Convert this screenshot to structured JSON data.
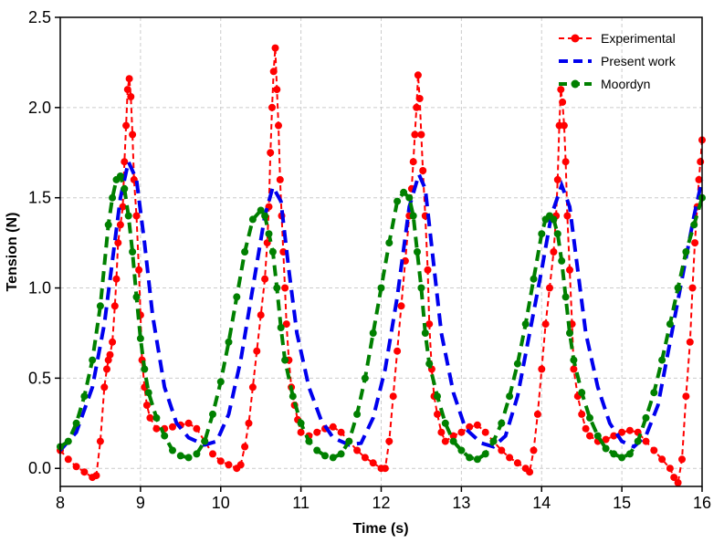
{
  "chart_data": {
    "type": "line",
    "title": "",
    "xlabel": "Time (s)",
    "ylabel": "Tension (N)",
    "xlim": [
      8,
      16
    ],
    "ylim": [
      -0.1,
      2.5
    ],
    "xticks": [
      8,
      9,
      10,
      11,
      12,
      13,
      14,
      15,
      16
    ],
    "yticks": [
      0.0,
      0.5,
      1.0,
      1.5,
      2.0,
      2.5
    ],
    "ytick_labels": [
      "0.0",
      "0.5",
      "1.0",
      "1.5",
      "2.0",
      "2.5"
    ],
    "grid": true,
    "legend_position": "top-right",
    "series": [
      {
        "name": "Experimental",
        "color": "#ff0000",
        "style": "dashed-markers",
        "points": [
          [
            8.0,
            0.1
          ],
          [
            8.1,
            0.05
          ],
          [
            8.2,
            0.01
          ],
          [
            8.3,
            -0.02
          ],
          [
            8.4,
            -0.05
          ],
          [
            8.45,
            -0.04
          ],
          [
            8.5,
            0.15
          ],
          [
            8.55,
            0.45
          ],
          [
            8.58,
            0.55
          ],
          [
            8.6,
            0.6
          ],
          [
            8.62,
            0.63
          ],
          [
            8.65,
            0.7
          ],
          [
            8.68,
            0.9
          ],
          [
            8.7,
            1.05
          ],
          [
            8.72,
            1.25
          ],
          [
            8.75,
            1.35
          ],
          [
            8.78,
            1.45
          ],
          [
            8.8,
            1.7
          ],
          [
            8.82,
            1.9
          ],
          [
            8.84,
            2.1
          ],
          [
            8.86,
            2.16
          ],
          [
            8.88,
            2.06
          ],
          [
            8.9,
            1.85
          ],
          [
            8.92,
            1.6
          ],
          [
            8.95,
            1.4
          ],
          [
            8.98,
            1.1
          ],
          [
            9.0,
            0.85
          ],
          [
            9.02,
            0.6
          ],
          [
            9.05,
            0.45
          ],
          [
            9.08,
            0.35
          ],
          [
            9.12,
            0.28
          ],
          [
            9.2,
            0.22
          ],
          [
            9.3,
            0.22
          ],
          [
            9.4,
            0.23
          ],
          [
            9.5,
            0.24
          ],
          [
            9.6,
            0.25
          ],
          [
            9.7,
            0.22
          ],
          [
            9.8,
            0.15
          ],
          [
            9.9,
            0.08
          ],
          [
            10.0,
            0.04
          ],
          [
            10.1,
            0.02
          ],
          [
            10.2,
            0.0
          ],
          [
            10.25,
            0.02
          ],
          [
            10.3,
            0.12
          ],
          [
            10.35,
            0.25
          ],
          [
            10.4,
            0.45
          ],
          [
            10.45,
            0.65
          ],
          [
            10.5,
            0.85
          ],
          [
            10.55,
            1.05
          ],
          [
            10.58,
            1.25
          ],
          [
            10.6,
            1.45
          ],
          [
            10.62,
            1.75
          ],
          [
            10.64,
            2.0
          ],
          [
            10.66,
            2.2
          ],
          [
            10.68,
            2.33
          ],
          [
            10.7,
            2.1
          ],
          [
            10.72,
            1.9
          ],
          [
            10.74,
            1.6
          ],
          [
            10.76,
            1.4
          ],
          [
            10.78,
            1.2
          ],
          [
            10.8,
            1.0
          ],
          [
            10.82,
            0.8
          ],
          [
            10.85,
            0.6
          ],
          [
            10.88,
            0.45
          ],
          [
            10.92,
            0.35
          ],
          [
            10.96,
            0.27
          ],
          [
            11.0,
            0.2
          ],
          [
            11.1,
            0.18
          ],
          [
            11.2,
            0.2
          ],
          [
            11.3,
            0.22
          ],
          [
            11.4,
            0.23
          ],
          [
            11.5,
            0.2
          ],
          [
            11.6,
            0.15
          ],
          [
            11.7,
            0.1
          ],
          [
            11.8,
            0.06
          ],
          [
            11.9,
            0.03
          ],
          [
            12.0,
            0.0
          ],
          [
            12.05,
            0.0
          ],
          [
            12.1,
            0.15
          ],
          [
            12.15,
            0.4
          ],
          [
            12.2,
            0.65
          ],
          [
            12.25,
            0.9
          ],
          [
            12.3,
            1.15
          ],
          [
            12.35,
            1.4
          ],
          [
            12.38,
            1.55
          ],
          [
            12.4,
            1.7
          ],
          [
            12.42,
            1.85
          ],
          [
            12.44,
            2.0
          ],
          [
            12.46,
            2.18
          ],
          [
            12.48,
            2.05
          ],
          [
            12.5,
            1.85
          ],
          [
            12.52,
            1.65
          ],
          [
            12.55,
            1.4
          ],
          [
            12.58,
            1.1
          ],
          [
            12.6,
            0.8
          ],
          [
            12.63,
            0.55
          ],
          [
            12.66,
            0.4
          ],
          [
            12.7,
            0.3
          ],
          [
            12.75,
            0.2
          ],
          [
            12.8,
            0.15
          ],
          [
            12.9,
            0.18
          ],
          [
            13.0,
            0.2
          ],
          [
            13.1,
            0.23
          ],
          [
            13.2,
            0.24
          ],
          [
            13.3,
            0.2
          ],
          [
            13.4,
            0.15
          ],
          [
            13.5,
            0.1
          ],
          [
            13.6,
            0.06
          ],
          [
            13.7,
            0.03
          ],
          [
            13.8,
            0.0
          ],
          [
            13.85,
            -0.02
          ],
          [
            13.9,
            0.1
          ],
          [
            13.95,
            0.3
          ],
          [
            14.0,
            0.55
          ],
          [
            14.05,
            0.8
          ],
          [
            14.1,
            1.0
          ],
          [
            14.15,
            1.2
          ],
          [
            14.18,
            1.4
          ],
          [
            14.2,
            1.6
          ],
          [
            14.22,
            1.9
          ],
          [
            14.24,
            2.1
          ],
          [
            14.26,
            2.03
          ],
          [
            14.28,
            1.9
          ],
          [
            14.3,
            1.7
          ],
          [
            14.32,
            1.4
          ],
          [
            14.35,
            1.1
          ],
          [
            14.38,
            0.8
          ],
          [
            14.4,
            0.55
          ],
          [
            14.45,
            0.4
          ],
          [
            14.5,
            0.3
          ],
          [
            14.55,
            0.22
          ],
          [
            14.6,
            0.18
          ],
          [
            14.7,
            0.15
          ],
          [
            14.8,
            0.16
          ],
          [
            14.9,
            0.18
          ],
          [
            15.0,
            0.2
          ],
          [
            15.1,
            0.21
          ],
          [
            15.2,
            0.2
          ],
          [
            15.3,
            0.15
          ],
          [
            15.4,
            0.1
          ],
          [
            15.5,
            0.05
          ],
          [
            15.6,
            0.0
          ],
          [
            15.65,
            -0.05
          ],
          [
            15.7,
            -0.08
          ],
          [
            15.75,
            0.05
          ],
          [
            15.8,
            0.4
          ],
          [
            15.85,
            0.7
          ],
          [
            15.88,
            1.0
          ],
          [
            15.91,
            1.25
          ],
          [
            15.94,
            1.45
          ],
          [
            15.96,
            1.6
          ],
          [
            15.98,
            1.7
          ],
          [
            16.0,
            1.82
          ]
        ]
      },
      {
        "name": "Present work",
        "color": "#0000ee",
        "style": "dashed",
        "points": [
          [
            8.0,
            0.1
          ],
          [
            8.2,
            0.2
          ],
          [
            8.4,
            0.45
          ],
          [
            8.55,
            0.8
          ],
          [
            8.65,
            1.15
          ],
          [
            8.75,
            1.5
          ],
          [
            8.85,
            1.7
          ],
          [
            8.95,
            1.6
          ],
          [
            9.05,
            1.25
          ],
          [
            9.15,
            0.85
          ],
          [
            9.3,
            0.45
          ],
          [
            9.45,
            0.25
          ],
          [
            9.6,
            0.17
          ],
          [
            9.8,
            0.13
          ],
          [
            9.95,
            0.15
          ],
          [
            10.1,
            0.3
          ],
          [
            10.25,
            0.6
          ],
          [
            10.4,
            1.0
          ],
          [
            10.55,
            1.4
          ],
          [
            10.65,
            1.56
          ],
          [
            10.75,
            1.48
          ],
          [
            10.85,
            1.1
          ],
          [
            10.95,
            0.75
          ],
          [
            11.1,
            0.45
          ],
          [
            11.25,
            0.27
          ],
          [
            11.4,
            0.17
          ],
          [
            11.6,
            0.13
          ],
          [
            11.75,
            0.14
          ],
          [
            11.9,
            0.28
          ],
          [
            12.05,
            0.55
          ],
          [
            12.2,
            0.95
          ],
          [
            12.35,
            1.45
          ],
          [
            12.47,
            1.63
          ],
          [
            12.55,
            1.55
          ],
          [
            12.65,
            1.15
          ],
          [
            12.75,
            0.75
          ],
          [
            12.9,
            0.42
          ],
          [
            13.05,
            0.22
          ],
          [
            13.25,
            0.14
          ],
          [
            13.4,
            0.12
          ],
          [
            13.55,
            0.18
          ],
          [
            13.7,
            0.4
          ],
          [
            13.85,
            0.75
          ],
          [
            14.0,
            1.1
          ],
          [
            14.12,
            1.4
          ],
          [
            14.25,
            1.57
          ],
          [
            14.35,
            1.45
          ],
          [
            14.45,
            1.1
          ],
          [
            14.55,
            0.75
          ],
          [
            14.7,
            0.45
          ],
          [
            14.85,
            0.25
          ],
          [
            15.0,
            0.15
          ],
          [
            15.15,
            0.12
          ],
          [
            15.3,
            0.18
          ],
          [
            15.45,
            0.35
          ],
          [
            15.6,
            0.7
          ],
          [
            15.75,
            1.05
          ],
          [
            15.9,
            1.4
          ],
          [
            16.0,
            1.6
          ]
        ]
      },
      {
        "name": "Moordyn",
        "color": "#008000",
        "style": "dashed-markers",
        "points": [
          [
            8.0,
            0.12
          ],
          [
            8.1,
            0.15
          ],
          [
            8.2,
            0.25
          ],
          [
            8.3,
            0.4
          ],
          [
            8.4,
            0.6
          ],
          [
            8.5,
            0.9
          ],
          [
            8.6,
            1.35
          ],
          [
            8.65,
            1.5
          ],
          [
            8.7,
            1.6
          ],
          [
            8.75,
            1.62
          ],
          [
            8.8,
            1.55
          ],
          [
            8.85,
            1.4
          ],
          [
            8.9,
            1.2
          ],
          [
            8.95,
            0.95
          ],
          [
            9.0,
            0.72
          ],
          [
            9.05,
            0.55
          ],
          [
            9.1,
            0.42
          ],
          [
            9.2,
            0.28
          ],
          [
            9.3,
            0.18
          ],
          [
            9.4,
            0.1
          ],
          [
            9.5,
            0.07
          ],
          [
            9.6,
            0.06
          ],
          [
            9.7,
            0.08
          ],
          [
            9.8,
            0.15
          ],
          [
            9.9,
            0.3
          ],
          [
            10.0,
            0.48
          ],
          [
            10.1,
            0.7
          ],
          [
            10.2,
            0.95
          ],
          [
            10.3,
            1.2
          ],
          [
            10.4,
            1.38
          ],
          [
            10.5,
            1.43
          ],
          [
            10.55,
            1.4
          ],
          [
            10.6,
            1.3
          ],
          [
            10.65,
            1.2
          ],
          [
            10.7,
            1.0
          ],
          [
            10.75,
            0.78
          ],
          [
            10.8,
            0.6
          ],
          [
            10.9,
            0.4
          ],
          [
            11.0,
            0.25
          ],
          [
            11.1,
            0.15
          ],
          [
            11.2,
            0.1
          ],
          [
            11.3,
            0.07
          ],
          [
            11.4,
            0.06
          ],
          [
            11.5,
            0.08
          ],
          [
            11.6,
            0.15
          ],
          [
            11.7,
            0.3
          ],
          [
            11.8,
            0.5
          ],
          [
            11.9,
            0.75
          ],
          [
            12.0,
            1.0
          ],
          [
            12.1,
            1.25
          ],
          [
            12.2,
            1.48
          ],
          [
            12.28,
            1.53
          ],
          [
            12.35,
            1.5
          ],
          [
            12.4,
            1.4
          ],
          [
            12.45,
            1.2
          ],
          [
            12.5,
            1.0
          ],
          [
            12.55,
            0.75
          ],
          [
            12.6,
            0.58
          ],
          [
            12.7,
            0.4
          ],
          [
            12.8,
            0.25
          ],
          [
            12.9,
            0.15
          ],
          [
            13.0,
            0.1
          ],
          [
            13.1,
            0.06
          ],
          [
            13.2,
            0.05
          ],
          [
            13.3,
            0.08
          ],
          [
            13.4,
            0.15
          ],
          [
            13.5,
            0.25
          ],
          [
            13.6,
            0.4
          ],
          [
            13.7,
            0.58
          ],
          [
            13.8,
            0.8
          ],
          [
            13.9,
            1.05
          ],
          [
            14.0,
            1.3
          ],
          [
            14.05,
            1.38
          ],
          [
            14.1,
            1.4
          ],
          [
            14.15,
            1.38
          ],
          [
            14.2,
            1.3
          ],
          [
            14.25,
            1.15
          ],
          [
            14.3,
            0.95
          ],
          [
            14.35,
            0.75
          ],
          [
            14.4,
            0.6
          ],
          [
            14.5,
            0.42
          ],
          [
            14.6,
            0.28
          ],
          [
            14.7,
            0.18
          ],
          [
            14.8,
            0.11
          ],
          [
            14.9,
            0.08
          ],
          [
            15.0,
            0.06
          ],
          [
            15.1,
            0.08
          ],
          [
            15.2,
            0.15
          ],
          [
            15.3,
            0.28
          ],
          [
            15.4,
            0.42
          ],
          [
            15.5,
            0.6
          ],
          [
            15.6,
            0.8
          ],
          [
            15.7,
            1.0
          ],
          [
            15.8,
            1.2
          ],
          [
            15.9,
            1.35
          ],
          [
            16.0,
            1.5
          ]
        ]
      }
    ]
  }
}
